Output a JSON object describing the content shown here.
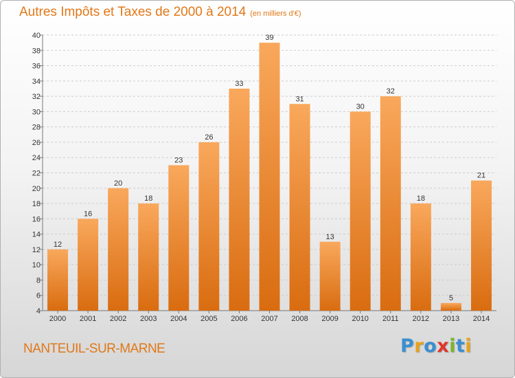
{
  "header": {
    "title": "Autres Impôts et Taxes de 2000 à 2014",
    "subtitle": "(en milliers d'€)"
  },
  "footer": {
    "commune": "NANTEUIL-SUR-MARNE",
    "logo_text": "Proxiti",
    "logo_letters": [
      {
        "char": "P",
        "color": "#3a8fd0"
      },
      {
        "char": "r",
        "color": "#e8a21a"
      },
      {
        "char": "o",
        "color": "#3a8fd0"
      },
      {
        "char": "x",
        "color": "#e2342b"
      },
      {
        "char": "i",
        "color": "#78b82a"
      },
      {
        "char": "t",
        "color": "#3a8fd0"
      },
      {
        "char": "i",
        "color": "#e8a21a"
      }
    ]
  },
  "colors": {
    "accent": "#e07818",
    "bar_light": "#f9a85c",
    "bar_dark": "#d96c10"
  },
  "chart_data": {
    "type": "bar",
    "title": "Autres Impôts et Taxes de 2000 à 2014",
    "subtitle": "(en milliers d'€)",
    "categories": [
      "2000",
      "2001",
      "2002",
      "2003",
      "2004",
      "2005",
      "2006",
      "2007",
      "2008",
      "2009",
      "2010",
      "2011",
      "2012",
      "2013",
      "2014"
    ],
    "values": [
      12,
      16,
      20,
      18,
      23,
      26,
      33,
      39,
      31,
      13,
      30,
      32,
      18,
      5,
      21
    ],
    "ylim": [
      4,
      40
    ],
    "yticks": [
      4,
      6,
      8,
      10,
      12,
      14,
      16,
      18,
      20,
      22,
      24,
      26,
      28,
      30,
      32,
      34,
      36,
      38,
      40
    ],
    "grid": true
  }
}
